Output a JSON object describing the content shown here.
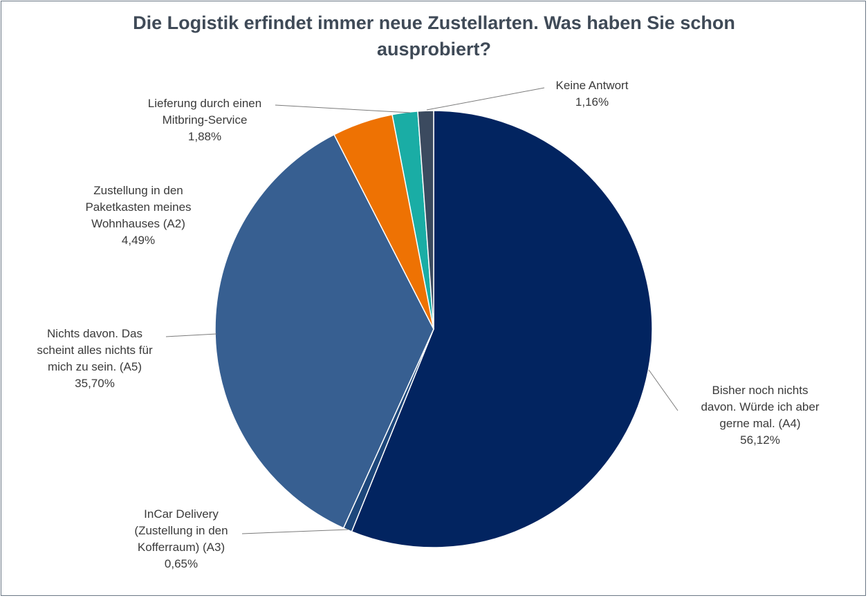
{
  "chart_data": {
    "type": "pie",
    "title_lines": [
      "Die Logistik erfindet immer neue Zustellarten. Was haben Sie schon",
      "ausprobiert?"
    ],
    "start_angle_deg": 0,
    "direction": "clockwise",
    "slices": [
      {
        "key": "a4",
        "label_lines": [
          "Bisher noch nichts",
          "davon. Würde ich aber",
          "gerne mal. (A4)"
        ],
        "value": 56.12,
        "value_label": "56,12%",
        "color": "#022460"
      },
      {
        "key": "a3",
        "label_lines": [
          "InCar Delivery",
          "(Zustellung in den",
          "Kofferraum) (A3)"
        ],
        "value": 0.65,
        "value_label": "0,65%",
        "color": "#1d477b"
      },
      {
        "key": "a5",
        "label_lines": [
          "Nichts davon. Das",
          "scheint alles nichts für",
          "mich zu sein. (A5)"
        ],
        "value": 35.7,
        "value_label": "35,70%",
        "color": "#375f91"
      },
      {
        "key": "a2",
        "label_lines": [
          "Zustellung in den",
          "Paketkasten meines",
          "Wohnhauses (A2)"
        ],
        "value": 4.49,
        "value_label": "4,49%",
        "color": "#ee7203"
      },
      {
        "key": "mitbring",
        "label_lines": [
          "Lieferung durch einen",
          "Mitbring-Service"
        ],
        "value": 1.88,
        "value_label": "1,88%",
        "color": "#1aada5"
      },
      {
        "key": "keine",
        "label_lines": [
          "Keine Antwort"
        ],
        "value": 1.16,
        "value_label": "1,16%",
        "color": "#3b4a5f"
      }
    ]
  }
}
